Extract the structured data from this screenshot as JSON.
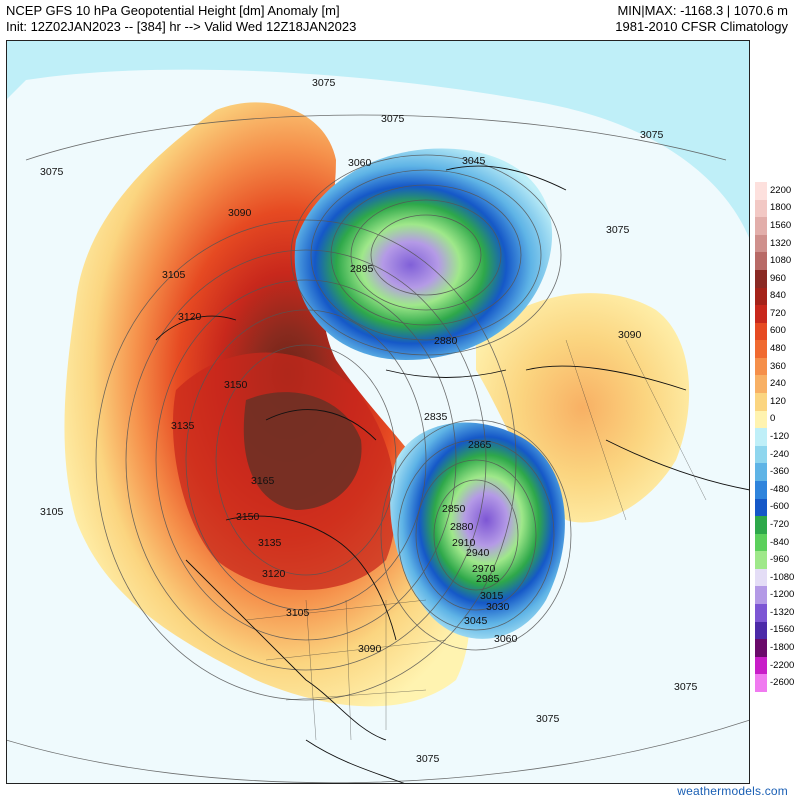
{
  "header": {
    "title": "NCEP GFS 10 hPa Geopotential Height [dm] Anomaly [m]",
    "init": "Init: 12Z02JAN2023 -- [384] hr --> Valid Wed 12Z18JAN2023",
    "minmax": "MIN|MAX: -1168.3 | 1070.6 m",
    "climatology": "1981-2010 CFSR Climatology"
  },
  "footer": {
    "source": "weathermodels.com"
  },
  "legend": {
    "items": [
      {
        "label": "2200",
        "color": "#fde0dd"
      },
      {
        "label": "1800",
        "color": "#f2c8c4"
      },
      {
        "label": "1560",
        "color": "#e2aeaa"
      },
      {
        "label": "1320",
        "color": "#cf908c"
      },
      {
        "label": "1080",
        "color": "#b86a66"
      },
      {
        "label": "960",
        "color": "#8a2a24"
      },
      {
        "label": "840",
        "color": "#a5231a"
      },
      {
        "label": "720",
        "color": "#c8281c"
      },
      {
        "label": "600",
        "color": "#e64a22"
      },
      {
        "label": "480",
        "color": "#f06a30"
      },
      {
        "label": "360",
        "color": "#f58f4a"
      },
      {
        "label": "240",
        "color": "#f8b064"
      },
      {
        "label": "120",
        "color": "#fbd580"
      },
      {
        "label": "0",
        "color": "#fff3b0"
      },
      {
        "label": "-120",
        "color": "#bfeff8"
      },
      {
        "label": "-240",
        "color": "#8fd6ee"
      },
      {
        "label": "-360",
        "color": "#5fb4e6"
      },
      {
        "label": "-480",
        "color": "#2f84dc"
      },
      {
        "label": "-600",
        "color": "#1558c8"
      },
      {
        "label": "-720",
        "color": "#2ea84a"
      },
      {
        "label": "-840",
        "color": "#5cd05c"
      },
      {
        "label": "-960",
        "color": "#9fe88a"
      },
      {
        "label": "-1080",
        "color": "#e4ddf6"
      },
      {
        "label": "-1200",
        "color": "#b49ae6"
      },
      {
        "label": "-1320",
        "color": "#7d56d4"
      },
      {
        "label": "-1560",
        "color": "#4c2aa8"
      },
      {
        "label": "-1800",
        "color": "#6a0a6a"
      },
      {
        "label": "-2200",
        "color": "#c81ec8"
      },
      {
        "label": "-2600",
        "color": "#f07af0"
      }
    ]
  },
  "contour_labels": [
    {
      "text": "3075"
    },
    {
      "text": "3075"
    },
    {
      "text": "3075"
    },
    {
      "text": "3075"
    },
    {
      "text": "3075"
    },
    {
      "text": "3075"
    },
    {
      "text": "3075"
    },
    {
      "text": "3075"
    },
    {
      "text": "3075"
    },
    {
      "text": "3090"
    },
    {
      "text": "3090"
    },
    {
      "text": "3090"
    },
    {
      "text": "3060"
    },
    {
      "text": "3060"
    },
    {
      "text": "3045"
    },
    {
      "text": "3045"
    },
    {
      "text": "2895"
    },
    {
      "text": "2880"
    },
    {
      "text": "2835"
    },
    {
      "text": "2865"
    },
    {
      "text": "2850"
    },
    {
      "text": "2880"
    },
    {
      "text": "2910"
    },
    {
      "text": "2940"
    },
    {
      "text": "2970"
    },
    {
      "text": "2985"
    },
    {
      "text": "3015"
    },
    {
      "text": "3030"
    },
    {
      "text": "3105"
    },
    {
      "text": "3105"
    },
    {
      "text": "3105"
    },
    {
      "text": "3120"
    },
    {
      "text": "3120"
    },
    {
      "text": "3150"
    },
    {
      "text": "3150"
    },
    {
      "text": "3135"
    },
    {
      "text": "3165"
    },
    {
      "text": "3135"
    }
  ],
  "anomaly_regions": {
    "positive_color_max": "#7a1a10",
    "negative_color_max": "#7d56d4",
    "ocean_background": "#bfeff8"
  }
}
